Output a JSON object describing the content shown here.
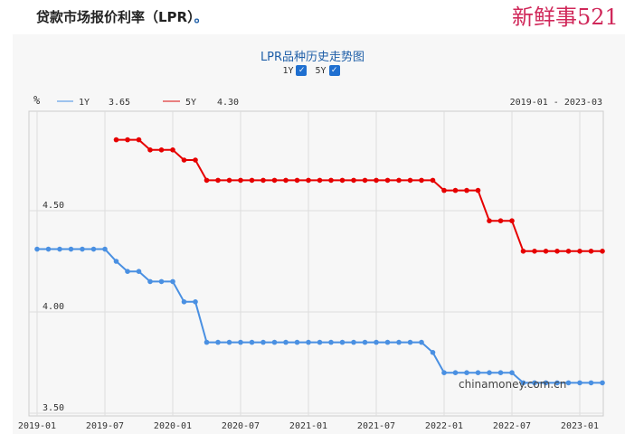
{
  "heading": "贷款市场报价利率（LPR）",
  "heading_dot": "。",
  "toggles": [
    {
      "label": "1Y",
      "checked": true
    },
    {
      "label": "5Y",
      "checked": true
    }
  ],
  "legend": {
    "unit": "%",
    "items": [
      {
        "name": "1Y",
        "value": "3.65"
      },
      {
        "name": "5Y",
        "value": "4.30"
      }
    ],
    "range": "2019-01 - 2023-03"
  },
  "watermarks": {
    "site": "chinamoney.com.cn",
    "badge": "新鲜事521"
  },
  "chart_data": {
    "type": "line",
    "title": "LPR品种历史走势图",
    "xlabel": "",
    "ylabel": "%",
    "x_ticks": [
      "2019-01",
      "2019-07",
      "2020-01",
      "2020-07",
      "2021-01",
      "2021-07",
      "2022-01",
      "2022-07",
      "2023-01"
    ],
    "y_ticks": [
      "3.50",
      "4.00",
      "4.50"
    ],
    "ylim": [
      3.5,
      4.95
    ],
    "x_range": [
      "2019-01",
      "2023-03"
    ],
    "grid": true,
    "colors": {
      "1Y": "#4a90e2",
      "5Y": "#e60000"
    },
    "series": [
      {
        "name": "1Y",
        "start": "2019-01",
        "values": [
          4.31,
          4.31,
          4.31,
          4.31,
          4.31,
          4.31,
          4.31,
          4.25,
          4.2,
          4.2,
          4.15,
          4.15,
          4.15,
          4.05,
          4.05,
          3.85,
          3.85,
          3.85,
          3.85,
          3.85,
          3.85,
          3.85,
          3.85,
          3.85,
          3.85,
          3.85,
          3.85,
          3.85,
          3.85,
          3.85,
          3.85,
          3.85,
          3.85,
          3.85,
          3.85,
          3.8,
          3.7,
          3.7,
          3.7,
          3.7,
          3.7,
          3.7,
          3.7,
          3.65,
          3.65,
          3.65,
          3.65,
          3.65,
          3.65,
          3.65,
          3.65
        ]
      },
      {
        "name": "5Y",
        "start": "2019-08",
        "values": [
          4.85,
          4.85,
          4.85,
          4.8,
          4.8,
          4.8,
          4.75,
          4.75,
          4.65,
          4.65,
          4.65,
          4.65,
          4.65,
          4.65,
          4.65,
          4.65,
          4.65,
          4.65,
          4.65,
          4.65,
          4.65,
          4.65,
          4.65,
          4.65,
          4.65,
          4.65,
          4.65,
          4.65,
          4.65,
          4.6,
          4.6,
          4.6,
          4.6,
          4.45,
          4.45,
          4.45,
          4.3,
          4.3,
          4.3,
          4.3,
          4.3,
          4.3,
          4.3,
          4.3
        ]
      }
    ]
  }
}
